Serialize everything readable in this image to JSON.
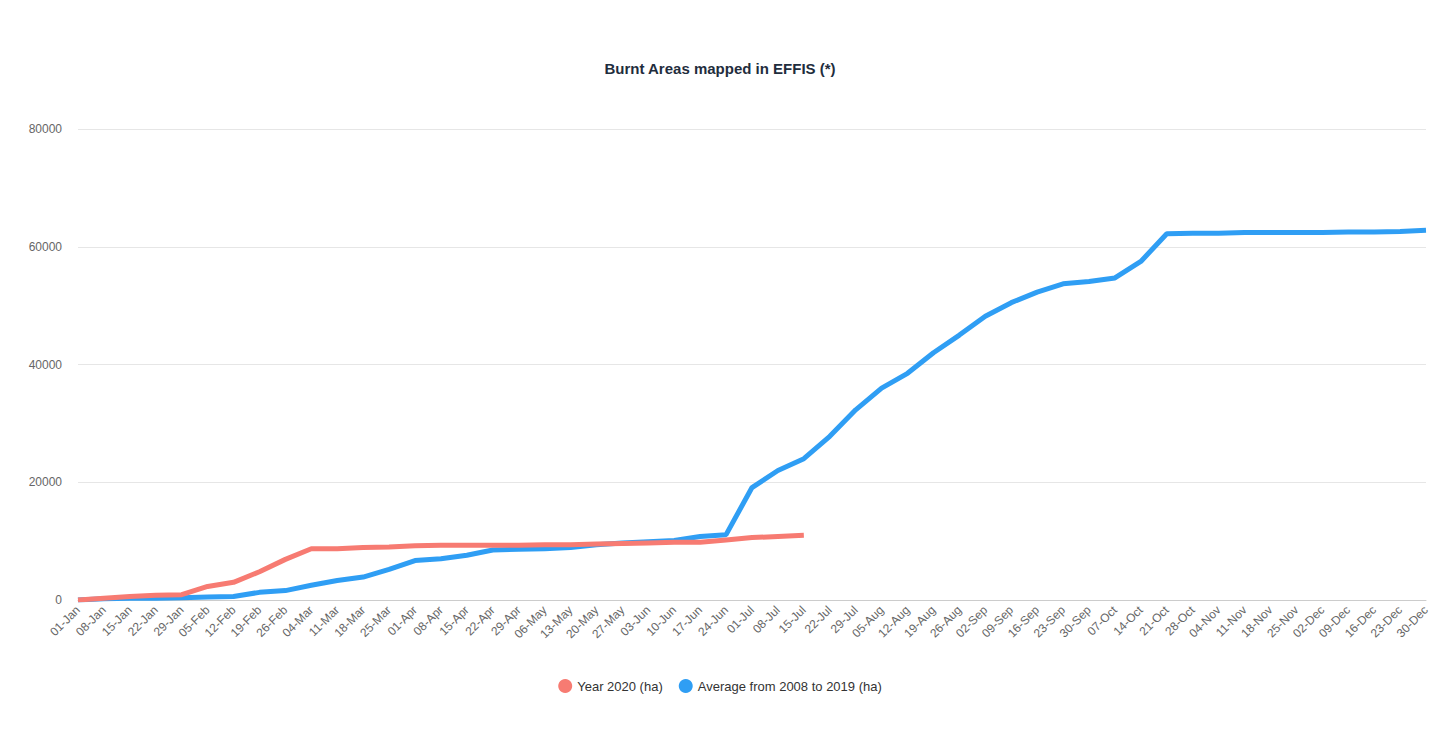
{
  "chart_data": {
    "type": "line",
    "title": "Burnt Areas mapped in EFFIS (*)",
    "categories": [
      "01-Jan",
      "08-Jan",
      "15-Jan",
      "22-Jan",
      "29-Jan",
      "05-Feb",
      "12-Feb",
      "19-Feb",
      "26-Feb",
      "04-Mar",
      "11-Mar",
      "18-Mar",
      "25-Mar",
      "01-Apr",
      "08-Apr",
      "15-Apr",
      "22-Apr",
      "29-Apr",
      "06-May",
      "13-May",
      "20-May",
      "27-May",
      "03-Jun",
      "10-Jun",
      "17-Jun",
      "24-Jun",
      "01-Jul",
      "08-Jul",
      "15-Jul",
      "22-Jul",
      "29-Jul",
      "05-Aug",
      "12-Aug",
      "19-Aug",
      "26-Aug",
      "02-Sep",
      "09-Sep",
      "16-Sep",
      "23-Sep",
      "30-Sep",
      "07-Oct",
      "14-Oct",
      "21-Oct",
      "28-Oct",
      "04-Nov",
      "11-Nov",
      "18-Nov",
      "25-Nov",
      "02-Dec",
      "09-Dec",
      "16-Dec",
      "23-Dec",
      "30-Dec"
    ],
    "series": [
      {
        "name": "Year 2020 (ha)",
        "color": "#f77b72",
        "values": [
          0,
          300,
          600,
          800,
          900,
          2300,
          3000,
          4800,
          6900,
          8700,
          8700,
          8900,
          9000,
          9200,
          9300,
          9300,
          9300,
          9300,
          9400,
          9400,
          9500,
          9600,
          9700,
          9800,
          9800,
          10200,
          10600,
          10800,
          11000,
          null,
          null,
          null,
          null,
          null,
          null,
          null,
          null,
          null,
          null,
          null,
          null,
          null,
          null,
          null,
          null,
          null,
          null,
          null,
          null,
          null,
          null,
          null,
          null
        ]
      },
      {
        "name": "Average from 2008 to 2019 (ha)",
        "color": "#2f9ef4",
        "values": [
          0,
          200,
          300,
          300,
          400,
          500,
          600,
          1300,
          1600,
          2500,
          3300,
          3900,
          5200,
          6700,
          7000,
          7600,
          8500,
          8600,
          8700,
          8900,
          9400,
          9700,
          9900,
          10100,
          10800,
          11100,
          19100,
          22000,
          24000,
          27800,
          32300,
          36000,
          38500,
          42000,
          45000,
          48200,
          50500,
          52300,
          53700,
          54100,
          54700,
          57500,
          62200,
          62300,
          62300,
          62400,
          62400,
          62400,
          62400,
          62500,
          62500,
          62600,
          62800
        ]
      }
    ],
    "ylim": [
      0,
      80000
    ],
    "yticks": [
      0,
      20000,
      40000,
      60000,
      80000
    ],
    "grid": true,
    "legend": "bottom"
  }
}
